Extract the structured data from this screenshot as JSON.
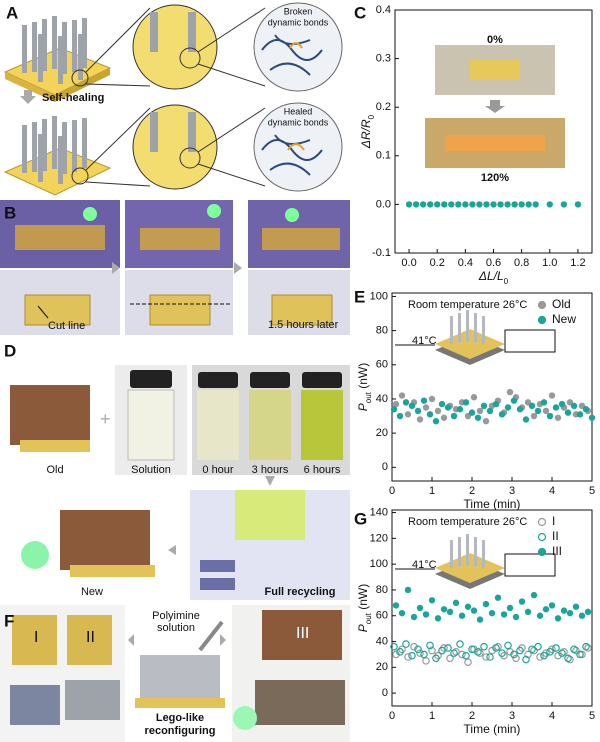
{
  "panels": {
    "A": {
      "label": "A",
      "self_healing": "Self-healing",
      "broken": [
        "Broken",
        "dynamic bonds"
      ],
      "healed": [
        "Healed",
        "dynamic bonds"
      ]
    },
    "B": {
      "label": "B",
      "cut_line": "Cut line",
      "later": "1.5 hours later"
    },
    "C": {
      "label": "C",
      "start": "0%",
      "end": "120%"
    },
    "D": {
      "label": "D",
      "old": "Old",
      "solution": "Solution",
      "t0": "0 hour",
      "t3": "3 hours",
      "t6": "6 hours",
      "new": "New",
      "recycling": "Full recycling"
    },
    "E": {
      "label": "E",
      "room": "Room temperature 26°C",
      "hot": "41°C"
    },
    "F": {
      "label": "F",
      "polyimine": [
        "Polyimine",
        "solution"
      ],
      "lego": [
        "Lego-like",
        "reconfiguring"
      ],
      "units": [
        "I",
        "II",
        "III"
      ]
    },
    "G": {
      "label": "G",
      "room": "Room temperature 26°C",
      "hot": "41°C"
    }
  },
  "chart_data": [
    {
      "type": "scatter",
      "xlabel": {
        "main": "ΔL/L",
        "sub": "0"
      },
      "ylabel": {
        "main": "ΔR/R",
        "sub": "0"
      },
      "x": [
        0,
        0.05,
        0.1,
        0.15,
        0.2,
        0.25,
        0.3,
        0.35,
        0.4,
        0.45,
        0.5,
        0.55,
        0.6,
        0.65,
        0.7,
        0.75,
        0.8,
        0.85,
        0.9,
        1.0,
        1.1,
        1.2
      ],
      "values": [
        0,
        0,
        0,
        0,
        0,
        0,
        0,
        0,
        0,
        0,
        0,
        0,
        0,
        0,
        0,
        0,
        0,
        0,
        0,
        0,
        0,
        0
      ],
      "color": "#1aa59a",
      "marker": "filled",
      "xlim": [
        -0.1,
        1.3
      ],
      "ylim": [
        -0.1,
        0.4
      ],
      "xticks": [
        {
          "value": 0,
          "label": "0.0"
        },
        {
          "value": 0.2,
          "label": "0.2"
        },
        {
          "value": 0.4,
          "label": "0.4"
        },
        {
          "value": 0.6,
          "label": "0.6"
        },
        {
          "value": 0.8,
          "label": "0.8"
        },
        {
          "value": 1,
          "label": "1.0"
        },
        {
          "value": 1.2,
          "label": "1.2"
        }
      ],
      "yticks": [
        {
          "value": -0.1,
          "label": "-0.1"
        },
        {
          "value": 0,
          "label": "0.0"
        },
        {
          "value": 0.1,
          "label": "0.1"
        },
        {
          "value": 0.2,
          "label": "0.2"
        },
        {
          "value": 0.3,
          "label": "0.3"
        },
        {
          "value": 0.4,
          "label": "0.4"
        }
      ]
    },
    {
      "type": "scatter",
      "xlabel": {
        "main": "Time (min)"
      },
      "ylabel": {
        "main": "P",
        "sub": "out",
        "rest": " (nW)"
      },
      "xlim": [
        0,
        5
      ],
      "ylim": [
        -8,
        102
      ],
      "xticks": [
        0,
        1,
        2,
        3,
        4,
        5
      ],
      "yticks": [
        0,
        20,
        40,
        60,
        80,
        100
      ],
      "legend": "upper right",
      "series": [
        {
          "name": "Old",
          "color": "#999999",
          "marker": "filled",
          "x": [
            0.1,
            0.25,
            0.4,
            0.55,
            0.7,
            0.85,
            1.0,
            1.15,
            1.3,
            1.45,
            1.6,
            1.75,
            1.9,
            2.05,
            2.2,
            2.35,
            2.5,
            2.65,
            2.8,
            2.95,
            3.1,
            3.25,
            3.4,
            3.55,
            3.7,
            3.85,
            4.0,
            4.15,
            4.3,
            4.45,
            4.6,
            4.75,
            4.9
          ],
          "values": [
            37,
            42,
            31,
            38,
            28,
            35,
            40,
            33,
            29,
            36,
            34,
            38,
            30,
            41,
            33,
            27,
            36,
            39,
            32,
            44,
            41,
            35,
            38,
            30,
            37,
            33,
            42,
            29,
            35,
            38,
            31,
            36,
            33
          ]
        },
        {
          "name": "New",
          "color": "#1aa59a",
          "marker": "filled",
          "x": [
            0.05,
            0.2,
            0.35,
            0.5,
            0.65,
            0.8,
            0.95,
            1.1,
            1.25,
            1.4,
            1.55,
            1.7,
            1.85,
            2.0,
            2.15,
            2.3,
            2.45,
            2.6,
            2.75,
            2.9,
            3.05,
            3.2,
            3.35,
            3.5,
            3.65,
            3.8,
            3.95,
            4.1,
            4.25,
            4.4,
            4.55,
            4.7,
            4.85,
            5.0
          ],
          "values": [
            34,
            30,
            38,
            36,
            33,
            39,
            31,
            27,
            37,
            35,
            30,
            34,
            38,
            32,
            29,
            36,
            33,
            37,
            31,
            35,
            39,
            34,
            28,
            36,
            33,
            38,
            30,
            35,
            37,
            32,
            36,
            31,
            34,
            29
          ]
        }
      ]
    },
    {
      "type": "scatter",
      "xlabel": {
        "main": "Time (min)"
      },
      "ylabel": {
        "main": "P",
        "sub": "out",
        "rest": " (nW)"
      },
      "xlim": [
        0,
        5
      ],
      "ylim": [
        -10,
        142
      ],
      "xticks": [
        0,
        1,
        2,
        3,
        4,
        5
      ],
      "yticks": [
        0,
        20,
        40,
        60,
        80,
        100,
        120,
        140
      ],
      "legend": "upper right",
      "series": [
        {
          "name": "I",
          "color": "#999999",
          "marker": "open",
          "x": [
            0.1,
            0.25,
            0.4,
            0.55,
            0.7,
            0.85,
            1.0,
            1.15,
            1.3,
            1.45,
            1.6,
            1.75,
            1.9,
            2.05,
            2.2,
            2.35,
            2.5,
            2.65,
            2.8,
            2.95,
            3.1,
            3.25,
            3.4,
            3.55,
            3.7,
            3.85,
            4.0,
            4.15,
            4.3,
            4.45,
            4.6,
            4.75,
            4.9
          ],
          "values": [
            30,
            34,
            28,
            36,
            31,
            25,
            33,
            29,
            35,
            27,
            32,
            30,
            24,
            34,
            31,
            28,
            33,
            36,
            29,
            32,
            27,
            35,
            30,
            33,
            28,
            31,
            34,
            29,
            32,
            26,
            33,
            30,
            35
          ]
        },
        {
          "name": "II",
          "color": "#1aa59a",
          "marker": "open",
          "x": [
            0.05,
            0.2,
            0.35,
            0.5,
            0.65,
            0.8,
            0.95,
            1.1,
            1.25,
            1.4,
            1.55,
            1.7,
            1.85,
            2.0,
            2.15,
            2.3,
            2.45,
            2.6,
            2.75,
            2.9,
            3.05,
            3.2,
            3.35,
            3.5,
            3.65,
            3.8,
            3.95,
            4.1,
            4.25,
            4.4,
            4.55,
            4.7,
            4.85
          ],
          "values": [
            36,
            32,
            38,
            29,
            34,
            30,
            37,
            27,
            33,
            35,
            31,
            38,
            29,
            34,
            32,
            36,
            28,
            35,
            31,
            37,
            30,
            33,
            26,
            34,
            36,
            29,
            32,
            35,
            31,
            27,
            34,
            30,
            36
          ]
        },
        {
          "name": "III",
          "color": "#1aa59a",
          "marker": "filled",
          "x": [
            0.1,
            0.25,
            0.4,
            0.55,
            0.7,
            0.85,
            1.0,
            1.15,
            1.3,
            1.45,
            1.6,
            1.75,
            1.9,
            2.05,
            2.2,
            2.35,
            2.5,
            2.65,
            2.8,
            2.95,
            3.1,
            3.25,
            3.4,
            3.55,
            3.7,
            3.85,
            4.0,
            4.15,
            4.3,
            4.45,
            4.6,
            4.75,
            4.9
          ],
          "values": [
            68,
            62,
            80,
            59,
            66,
            61,
            72,
            58,
            65,
            63,
            70,
            60,
            67,
            64,
            57,
            69,
            62,
            74,
            61,
            66,
            59,
            71,
            63,
            76,
            60,
            65,
            68,
            58,
            64,
            62,
            67,
            60,
            63
          ]
        }
      ]
    }
  ]
}
